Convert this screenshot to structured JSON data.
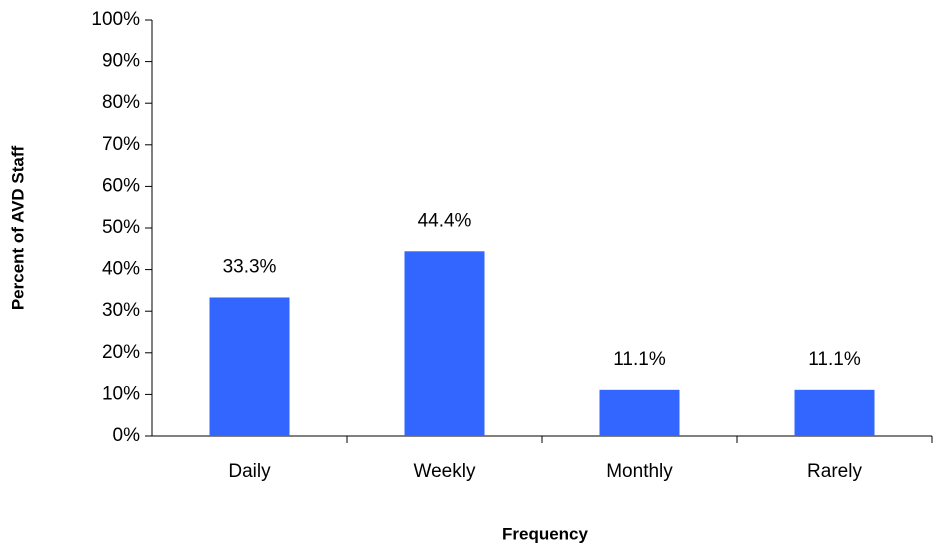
{
  "chart_data": {
    "type": "bar",
    "xlabel": "Frequency",
    "ylabel": "Percent of AVD Staff",
    "categories": [
      "Daily",
      "Weekly",
      "Monthly",
      "Rarely"
    ],
    "values": [
      33.3,
      44.4,
      11.1,
      11.1
    ],
    "value_labels": [
      "33.3%",
      "44.4%",
      "11.1%",
      "11.1%"
    ],
    "color": "#3366ff",
    "ylim": [
      0,
      100
    ],
    "yticks": [
      {
        "value": 0,
        "label": "0%"
      },
      {
        "value": 10,
        "label": "10%"
      },
      {
        "value": 20,
        "label": "20%"
      },
      {
        "value": 30,
        "label": "30%"
      },
      {
        "value": 40,
        "label": "40%"
      },
      {
        "value": 50,
        "label": "50%"
      },
      {
        "value": 60,
        "label": "60%"
      },
      {
        "value": 70,
        "label": "70%"
      },
      {
        "value": 80,
        "label": "80%"
      },
      {
        "value": 90,
        "label": "90%"
      },
      {
        "value": 100,
        "label": "100%"
      }
    ]
  }
}
